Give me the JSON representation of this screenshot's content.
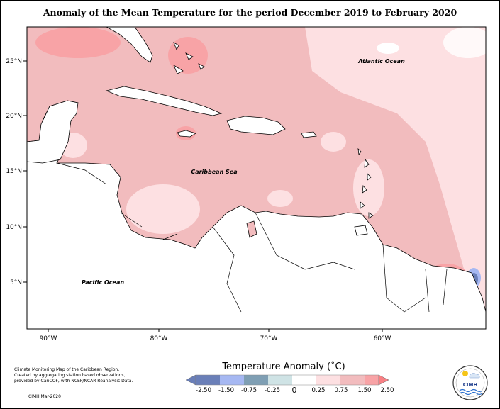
{
  "title": "Anomaly of the Mean Temperature for the period December 2019 to February 2020",
  "labels": {
    "atlantic": "Atlantic Ocean",
    "caribbean": "Caribbean Sea",
    "pacific": "Pacific Ocean"
  },
  "axes": {
    "lat_ticks": [
      "25°N",
      "20°N",
      "15°N",
      "10°N",
      "5°N"
    ],
    "lon_ticks": [
      "90°W",
      "80°W",
      "70°W",
      "60°W"
    ]
  },
  "colorbar": {
    "title": "Temperature Anomaly (˚C)",
    "tick_labels": [
      "-2.50",
      "-1.50",
      "-0.75",
      "-0.25",
      "0",
      "0.25",
      "0.75",
      "1.50",
      "2.50"
    ],
    "colors": [
      "#6a7fb8",
      "#a6b8f2",
      "#7f9fb4",
      "#cfe3e5",
      "#ffffff",
      "#fde0e2",
      "#f2bcbe",
      "#f8a3a6",
      "#f88084"
    ]
  },
  "credits": {
    "line1": "Climate Monitoring Map of the Caribbean Region.",
    "line2": "Created by aggregating station based observations,",
    "line3": "provided by CariCOF, with NCEP/NCAR Reanalysis Data.",
    "footer": "CIMH Mar-2020"
  },
  "logo": {
    "text": "CIMH"
  }
}
